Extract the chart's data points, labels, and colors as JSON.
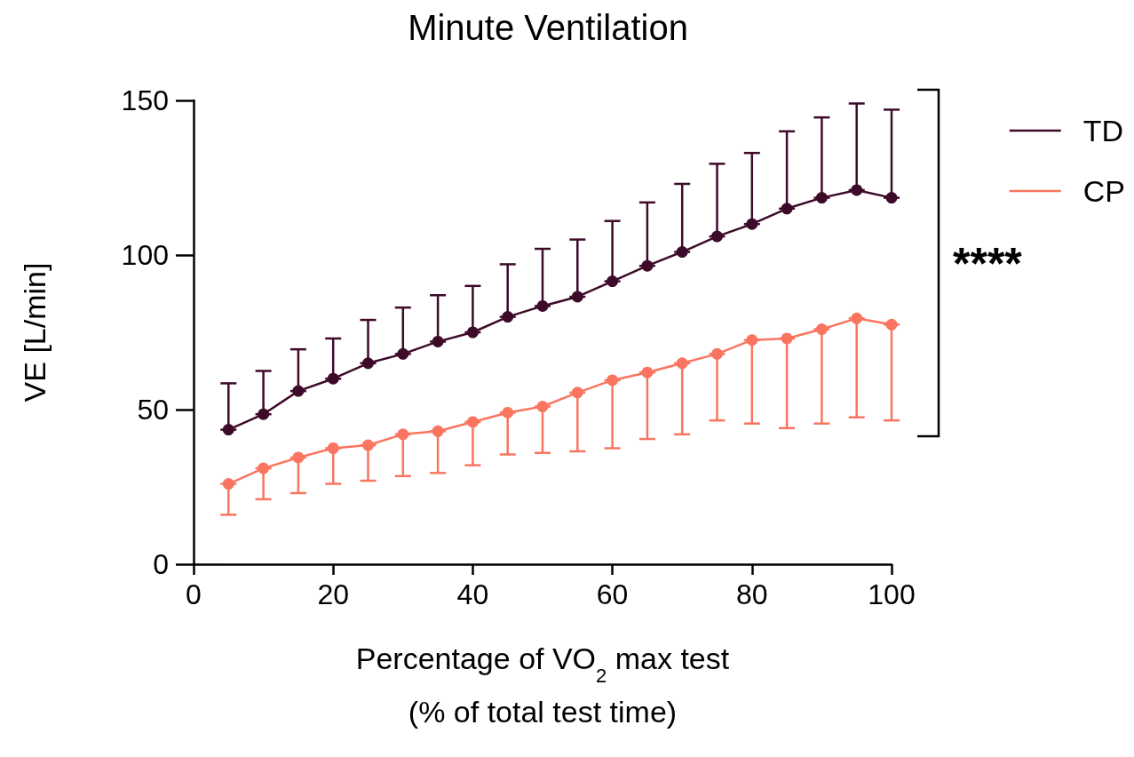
{
  "chart_data": {
    "type": "line",
    "title": "Minute Ventilation",
    "xlabel": "Percentage of VO$_{2}$ max test\n(% of total test time)",
    "ylabel": "VE [L/min]",
    "x": [
      5,
      10,
      15,
      20,
      25,
      30,
      35,
      40,
      45,
      50,
      55,
      60,
      65,
      70,
      75,
      80,
      85,
      90,
      95,
      100
    ],
    "series": [
      {
        "name": "TD",
        "color": "#3d0a2a",
        "values": [
          43.5,
          48.5,
          56,
          60,
          65,
          68,
          72,
          75,
          80,
          83.5,
          86.5,
          91.5,
          96.5,
          101,
          106,
          110,
          115,
          118.5,
          121,
          118.5
        ],
        "errors": [
          [
            43.5,
            58.5
          ],
          [
            48.5,
            62.5
          ],
          [
            56,
            69.5
          ],
          [
            60,
            73
          ],
          [
            65,
            79
          ],
          [
            68,
            83
          ],
          [
            72,
            87
          ],
          [
            75,
            90
          ],
          [
            80,
            97
          ],
          [
            83.5,
            102
          ],
          [
            86.5,
            105
          ],
          [
            91.5,
            111
          ],
          [
            96.5,
            117
          ],
          [
            101,
            123
          ],
          [
            106,
            129.5
          ],
          [
            110,
            133
          ],
          [
            115,
            140
          ],
          [
            118.5,
            144.5
          ],
          [
            121,
            149
          ],
          [
            118.5,
            147
          ]
        ]
      },
      {
        "name": "CP",
        "color": "#fa7560",
        "values": [
          26,
          31,
          34.5,
          37.5,
          38.5,
          42,
          43,
          46,
          49,
          51,
          55.5,
          59.5,
          62,
          65,
          68,
          72.5,
          73,
          76,
          79.5,
          77.5
        ],
        "errors": [
          [
            16,
            26
          ],
          [
            21,
            31
          ],
          [
            23,
            34.5
          ],
          [
            26,
            37.5
          ],
          [
            27,
            38.5
          ],
          [
            28.5,
            42
          ],
          [
            29.5,
            43
          ],
          [
            32,
            46
          ],
          [
            35.5,
            49
          ],
          [
            36,
            51
          ],
          [
            36.5,
            55.5
          ],
          [
            37.5,
            59.5
          ],
          [
            40.5,
            62
          ],
          [
            42,
            65
          ],
          [
            46.5,
            68
          ],
          [
            45.5,
            72.5
          ],
          [
            44,
            73
          ],
          [
            45.5,
            76
          ],
          [
            47.5,
            79.5
          ],
          [
            46.5,
            77.5
          ]
        ]
      }
    ],
    "xlim": [
      0,
      100
    ],
    "xticks": [
      0,
      20,
      40,
      60,
      80,
      100
    ],
    "ylim": [
      0,
      150
    ],
    "yticks": [
      0,
      50,
      100,
      150
    ],
    "annotations": [
      "****"
    ],
    "legend": "top right",
    "marker": "circle",
    "line_style": "solid",
    "grid": false
  }
}
